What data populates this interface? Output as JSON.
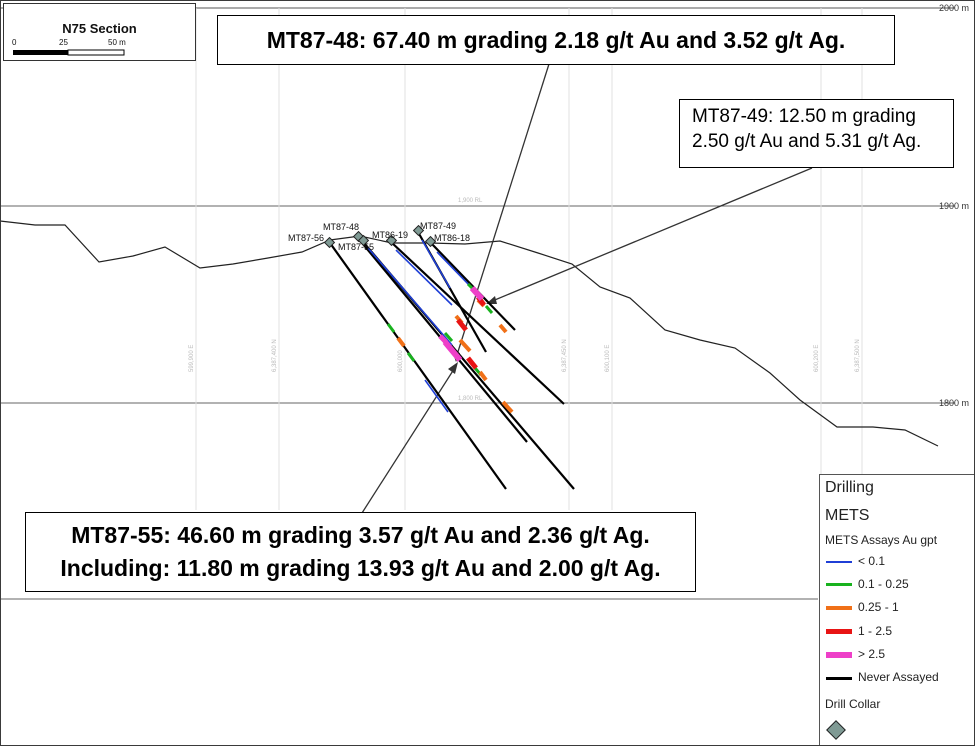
{
  "section": {
    "title": "N75 Section",
    "scale_labels": [
      "0",
      "25",
      "50 m"
    ]
  },
  "elevations": {
    "right_labels": [
      "2000 m",
      "1900 m",
      "1800 m"
    ],
    "rl_labels": [
      "1,900 RL",
      "1,800 RL"
    ]
  },
  "grid_labels": [
    "599,900 E",
    "6,387,400 N",
    "600,000",
    "6,387,450 N",
    "600,100 E",
    "600,200 E",
    "6,387,500 N"
  ],
  "collars": [
    "MT87-48",
    "MT87-56",
    "MT87-55",
    "MT86-19",
    "MT87-49",
    "MT86-18"
  ],
  "callouts": {
    "mt87_48": "MT87-48: 67.40 m grading 2.18 g/t Au and 3.52 g/t Ag.",
    "mt87_49": [
      "MT87-49: 12.50 m grading",
      "2.50 g/t Au and 5.31 g/t Ag."
    ],
    "mt87_55": [
      "MT87-55: 46.60 m grading 3.57 g/t Au and 2.36 g/t Ag.",
      "Including: 11.80 m grading 13.93 g/t Au and 2.00 g/t Ag."
    ]
  },
  "legend": {
    "title": "Drilling",
    "group": "METS",
    "subtitle": "METS Assays Au gpt",
    "items": [
      {
        "label": "< 0.1",
        "color": "#1f3fd6"
      },
      {
        "label": "0.1 - 0.25",
        "color": "#18b21e"
      },
      {
        "label": "0.25 - 1",
        "color": "#f07018"
      },
      {
        "label": "1 - 2.5",
        "color": "#e81414"
      },
      {
        "label": "> 2.5",
        "color": "#ee3fc8"
      },
      {
        "label": "Never Assayed",
        "color": "#000000"
      }
    ],
    "collar_label": "Drill Collar",
    "collar_color": "#7f9a94"
  }
}
